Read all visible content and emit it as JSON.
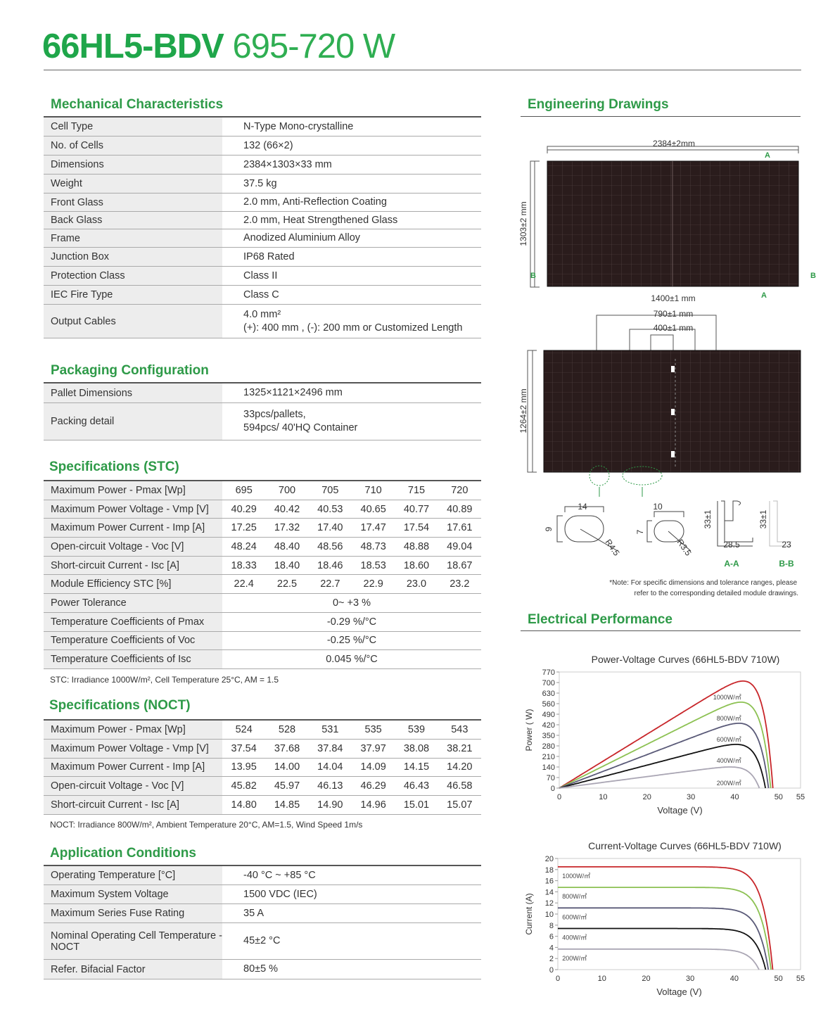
{
  "title": {
    "model": "66HL5-BDV",
    "range": "695-720 W"
  },
  "mechanical": {
    "heading": "Mechanical Characteristics",
    "rows": [
      {
        "label": "Cell Type",
        "value": [
          "N-Type Mono-crystalline"
        ]
      },
      {
        "label": "No. of Cells",
        "value": [
          "132 (66×2)"
        ]
      },
      {
        "label": "Dimensions",
        "value": [
          "2384×1303×33 mm"
        ]
      },
      {
        "label": "Weight",
        "value": [
          "37.5 kg"
        ]
      },
      {
        "label": "Front Glass",
        "value": [
          "2.0 mm, Anti-Reflection Coating"
        ]
      },
      {
        "label": "Back Glass",
        "value": [
          "2.0 mm, Heat Strengthened Glass"
        ]
      },
      {
        "label": "Frame",
        "value": [
          "Anodized Aluminium Alloy"
        ]
      },
      {
        "label": "Junction Box",
        "value": [
          "IP68 Rated"
        ]
      },
      {
        "label": "Protection Class",
        "value": [
          "Class II"
        ]
      },
      {
        "label": "IEC Fire Type",
        "value": [
          "Class C"
        ]
      },
      {
        "label": "Output Cables",
        "value": [
          "4.0 mm²",
          "(+): 400 mm , (-): 200 mm or Customized Length"
        ]
      }
    ]
  },
  "packaging": {
    "heading": "Packaging Configuration",
    "rows": [
      {
        "label": "Pallet Dimensions",
        "value": [
          "1325×1121×2496 mm"
        ]
      },
      {
        "label": "Packing detail",
        "value": [
          "33pcs/pallets,",
          "594pcs/ 40'HQ Container"
        ]
      }
    ]
  },
  "stc": {
    "heading": "Specifications (STC)",
    "rows": [
      {
        "label": "Maximum Power - Pmax [Wp]",
        "values": [
          "695",
          "700",
          "705",
          "710",
          "715",
          "720"
        ]
      },
      {
        "label": "Maximum Power Voltage - Vmp [V]",
        "values": [
          "40.29",
          "40.42",
          "40.53",
          "40.65",
          "40.77",
          "40.89"
        ]
      },
      {
        "label": "Maximum Power Current - Imp [A]",
        "values": [
          "17.25",
          "17.32",
          "17.40",
          "17.47",
          "17.54",
          "17.61"
        ]
      },
      {
        "label": "Open-circuit Voltage - Voc [V]",
        "values": [
          "48.24",
          "48.40",
          "48.56",
          "48.73",
          "48.88",
          "49.04"
        ]
      },
      {
        "label": "Short-circuit Current - Isc [A]",
        "values": [
          "18.33",
          "18.40",
          "18.46",
          "18.53",
          "18.60",
          "18.67"
        ]
      },
      {
        "label": "Module Efficiency STC [%]",
        "values": [
          "22.4",
          "22.5",
          "22.7",
          "22.9",
          "23.0",
          "23.2"
        ]
      },
      {
        "label": "Power Tolerance",
        "span": "0~ +3 %"
      },
      {
        "label": "Temperature Coefficients of Pmax",
        "span": "-0.29 %/°C"
      },
      {
        "label": "Temperature Coefficients of Voc",
        "span": "-0.25 %/°C"
      },
      {
        "label": "Temperature Coefficients of Isc",
        "span": "0.045 %/°C"
      }
    ],
    "note": "STC: Irradiance 1000W/m², Cell Temperature 25°C, AM = 1.5"
  },
  "noct": {
    "heading": "Specifications (NOCT)",
    "rows": [
      {
        "label": "Maximum Power - Pmax [Wp]",
        "values": [
          "524",
          "528",
          "531",
          "535",
          "539",
          "543"
        ]
      },
      {
        "label": "Maximum Power Voltage - Vmp [V]",
        "values": [
          "37.54",
          "37.68",
          "37.84",
          "37.97",
          "38.08",
          "38.21"
        ]
      },
      {
        "label": "Maximum Power Current - Imp [A]",
        "values": [
          "13.95",
          "14.00",
          "14.04",
          "14.09",
          "14.15",
          "14.20"
        ]
      },
      {
        "label": "Open-circuit Voltage - Voc [V]",
        "values": [
          "45.82",
          "45.97",
          "46.13",
          "46.29",
          "46.43",
          "46.58"
        ]
      },
      {
        "label": "Short-circuit Current - Isc [A]",
        "values": [
          "14.80",
          "14.85",
          "14.90",
          "14.96",
          "15.01",
          "15.07"
        ]
      }
    ],
    "note": "NOCT: Irradiance 800W/m², Ambient Temperature 20°C, AM=1.5, Wind Speed 1m/s"
  },
  "application": {
    "heading": "Application Conditions",
    "rows": [
      {
        "label": "Operating Temperature [°C]",
        "value": [
          "-40 °C ~ +85 °C"
        ]
      },
      {
        "label": "Maximum System Voltage",
        "value": [
          "1500 VDC (IEC)"
        ]
      },
      {
        "label": "Maximum Series Fuse Rating",
        "value": [
          "35 A"
        ]
      },
      {
        "label": "Nominal Operating Cell Temperature - NOCT",
        "value": [
          "45±2 °C"
        ]
      },
      {
        "label": "Refer. Bifacial Factor",
        "value": [
          "80±5 %"
        ]
      }
    ]
  },
  "drawings": {
    "heading": "Engineering Drawings",
    "length": "2384±2mm",
    "width": "1303±2 mm",
    "mark_a": "A",
    "mark_b": "B",
    "d1400": "1400±1 mm",
    "d790": "790±1 mm",
    "d400": "400±1 mm",
    "d1264": "1264±2 mm",
    "hole1_w": "14",
    "hole1_h": "9",
    "hole1_r": "R4.5",
    "hole2_w": "10",
    "hole2_h": "7",
    "hole2_r": "R3.5",
    "aa_h": "33±1",
    "aa_w": "28.5",
    "aa_label": "A-A",
    "bb_h": "33±1",
    "bb_w": "23",
    "bb_label": "B-B",
    "note_1": "*Note: For specific dimensions and tolerance ranges, please",
    "note_2": "refer to the corresponding detailed module drawings.",
    "panel_color": "#2a1c1c"
  },
  "electrical": {
    "heading": "Electrical Performance"
  },
  "chart_data": [
    {
      "type": "line",
      "title": "Power-Voltage Curves (66HL5-BDV 710W)",
      "xlabel": "Voltage (V)",
      "ylabel": "Power ( W)",
      "xlim": [
        0,
        55
      ],
      "ylim": [
        0,
        770
      ],
      "xticks": [
        0,
        10,
        20,
        30,
        40,
        50,
        55
      ],
      "yticks": [
        0,
        70,
        140,
        210,
        280,
        350,
        420,
        490,
        560,
        630,
        700,
        770
      ],
      "grid": false,
      "series": [
        {
          "name": "1000W/㎡",
          "color": "#c8262a",
          "isc": 18.5,
          "voc": 48.7,
          "pmax": 710
        },
        {
          "name": "800W/㎡",
          "color": "#8cc152",
          "isc": 14.8,
          "voc": 48.2,
          "pmax": 570
        },
        {
          "name": "600W/㎡",
          "color": "#5a5a78",
          "isc": 11.1,
          "voc": 47.7,
          "pmax": 430
        },
        {
          "name": "400W/㎡",
          "color": "#111111",
          "isc": 7.4,
          "voc": 47.0,
          "pmax": 290
        },
        {
          "name": "200W/㎡",
          "color": "#aaa6b4",
          "isc": 3.7,
          "voc": 45.6,
          "pmax": 140
        }
      ]
    },
    {
      "type": "line",
      "title": "Current-Voltage Curves (66HL5-BDV 710W)",
      "xlabel": "Voltage (V)",
      "ylabel": "Current (A)",
      "xlim": [
        0,
        55
      ],
      "ylim": [
        0,
        20
      ],
      "xticks": [
        0,
        10,
        20,
        30,
        40,
        50,
        55
      ],
      "yticks": [
        0,
        2,
        4,
        6,
        8,
        10,
        12,
        14,
        16,
        18,
        20
      ],
      "grid": false,
      "series": [
        {
          "name": "1000W/㎡",
          "color": "#c8262a",
          "isc": 18.5,
          "voc": 48.7
        },
        {
          "name": "800W/㎡",
          "color": "#8cc152",
          "isc": 14.8,
          "voc": 48.3
        },
        {
          "name": "600W/㎡",
          "color": "#5a5a78",
          "isc": 11.1,
          "voc": 47.7
        },
        {
          "name": "400W/㎡",
          "color": "#111111",
          "isc": 7.4,
          "voc": 47.1
        },
        {
          "name": "200W/㎡",
          "color": "#aaa6b4",
          "isc": 3.7,
          "voc": 45.6
        }
      ]
    }
  ]
}
